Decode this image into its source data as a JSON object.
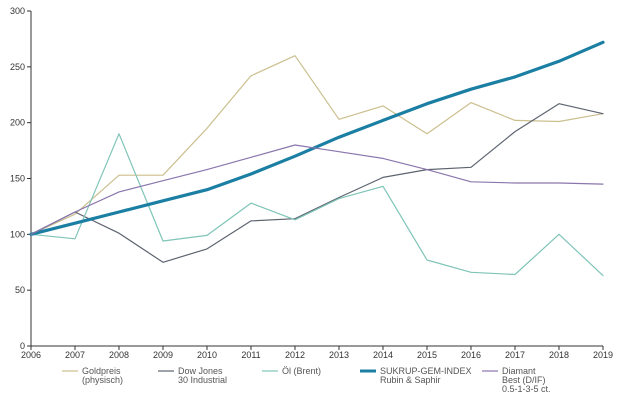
{
  "chart_data": {
    "type": "line",
    "x": [
      2006,
      2007,
      2008,
      2009,
      2010,
      2011,
      2012,
      2013,
      2014,
      2015,
      2016,
      2017,
      2018,
      2019
    ],
    "ylim": [
      0,
      300
    ],
    "yticks": [
      0,
      50,
      100,
      150,
      200,
      250,
      300
    ],
    "grid": false,
    "legend_position": "bottom",
    "series": [
      {
        "name": [
          "Goldpreis",
          "(physisch)"
        ],
        "color": "#cbbf8e",
        "width": 1.2,
        "values": [
          100,
          118,
          153,
          153,
          195,
          242,
          260,
          203,
          215,
          190,
          218,
          202,
          201,
          208
        ]
      },
      {
        "name": [
          "Dow Jones",
          "30 Industrial"
        ],
        "color": "#5d6470",
        "width": 1.2,
        "values": [
          100,
          120,
          101,
          75,
          87,
          112,
          114,
          133,
          151,
          158,
          160,
          192,
          217,
          208
        ]
      },
      {
        "name": [
          "Öl (Brent)"
        ],
        "color": "#7fc4b8",
        "width": 1.2,
        "values": [
          100,
          96,
          190,
          94,
          99,
          128,
          113,
          132,
          143,
          77,
          66,
          64,
          100,
          63
        ]
      },
      {
        "name": [
          "SUKRUP-GEM-INDEX",
          "Rubin & Saphir"
        ],
        "color": "#1b7fa3",
        "width": 3.2,
        "values": [
          100,
          110,
          120,
          130,
          140,
          154,
          170,
          187,
          202,
          217,
          230,
          241,
          255,
          272
        ]
      },
      {
        "name": [
          "Diamant",
          "Best (D/IF)",
          "0.5-1-3-5 ct."
        ],
        "color": "#8b76ad",
        "width": 1.2,
        "values": [
          100,
          120,
          138,
          148,
          158,
          169,
          180,
          174,
          168,
          158,
          147,
          146,
          146,
          145
        ]
      }
    ]
  }
}
